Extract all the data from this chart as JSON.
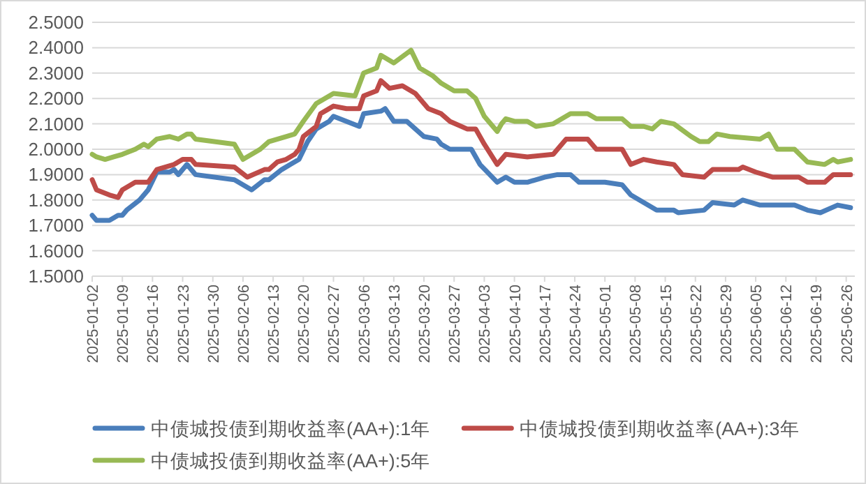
{
  "chart_data": {
    "type": "line",
    "xlim": [
      "2025-01-02",
      "2025-06-28"
    ],
    "xticks": [
      "2025-01-02",
      "2025-01-09",
      "2025-01-16",
      "2025-01-23",
      "2025-01-30",
      "2025-02-06",
      "2025-02-13",
      "2025-02-20",
      "2025-02-27",
      "2025-03-06",
      "2025-03-13",
      "2025-03-20",
      "2025-03-27",
      "2025-04-03",
      "2025-04-10",
      "2025-04-17",
      "2025-04-24",
      "2025-05-01",
      "2025-05-08",
      "2025-05-15",
      "2025-05-22",
      "2025-05-29",
      "2025-06-05",
      "2025-06-12",
      "2025-06-19",
      "2025-06-26"
    ],
    "ylim": [
      1.5,
      2.5
    ],
    "yticks": [
      {
        "value": 1.5,
        "label": "1.5000"
      },
      {
        "value": 1.6,
        "label": "1.6000"
      },
      {
        "value": 1.7,
        "label": "1.7000"
      },
      {
        "value": 1.8,
        "label": "1.8000"
      },
      {
        "value": 1.9,
        "label": "1.9000"
      },
      {
        "value": 2.0,
        "label": "2.0000"
      },
      {
        "value": 2.1,
        "label": "2.1000"
      },
      {
        "value": 2.2,
        "label": "2.2000"
      },
      {
        "value": 2.3,
        "label": "2.3000"
      },
      {
        "value": 2.4,
        "label": "2.4000"
      },
      {
        "value": 2.5,
        "label": "2.5000"
      }
    ],
    "grid": "y",
    "legend": "bottom",
    "series": [
      {
        "name": "中债城投债到期收益率(AA+):1年",
        "color": "#4a7ebb",
        "x": [
          "2025-01-02",
          "2025-01-03",
          "2025-01-06",
          "2025-01-08",
          "2025-01-09",
          "2025-01-10",
          "2025-01-13",
          "2025-01-15",
          "2025-01-17",
          "2025-01-20",
          "2025-01-21",
          "2025-01-22",
          "2025-01-24",
          "2025-01-25",
          "2025-01-26",
          "2025-02-04",
          "2025-02-08",
          "2025-02-11",
          "2025-02-12",
          "2025-02-15",
          "2025-02-17",
          "2025-02-19",
          "2025-02-21",
          "2025-02-23",
          "2025-02-26",
          "2025-02-27",
          "2025-03-05",
          "2025-03-06",
          "2025-03-10",
          "2025-03-11",
          "2025-03-13",
          "2025-03-16",
          "2025-03-20",
          "2025-03-23",
          "2025-03-24",
          "2025-03-26",
          "2025-03-31",
          "2025-04-02",
          "2025-04-06",
          "2025-04-08",
          "2025-04-10",
          "2025-04-13",
          "2025-04-17",
          "2025-04-20",
          "2025-04-23",
          "2025-04-25",
          "2025-05-01",
          "2025-05-05",
          "2025-05-07",
          "2025-05-09",
          "2025-05-13",
          "2025-05-17",
          "2025-05-18",
          "2025-05-24",
          "2025-05-26",
          "2025-05-31",
          "2025-06-02",
          "2025-06-06",
          "2025-06-14",
          "2025-06-17",
          "2025-06-20",
          "2025-06-24",
          "2025-06-27"
        ],
        "values": [
          1.74,
          1.72,
          1.72,
          1.74,
          1.74,
          1.76,
          1.8,
          1.84,
          1.91,
          1.91,
          1.92,
          1.9,
          1.94,
          1.92,
          1.9,
          1.88,
          1.84,
          1.88,
          1.88,
          1.92,
          1.94,
          1.96,
          2.03,
          2.08,
          2.11,
          2.13,
          2.09,
          2.14,
          2.15,
          2.16,
          2.11,
          2.11,
          2.05,
          2.04,
          2.02,
          2.0,
          2.0,
          1.94,
          1.87,
          1.89,
          1.87,
          1.87,
          1.89,
          1.9,
          1.9,
          1.87,
          1.87,
          1.86,
          1.82,
          1.8,
          1.76,
          1.76,
          1.75,
          1.76,
          1.79,
          1.78,
          1.8,
          1.78,
          1.78,
          1.76,
          1.75,
          1.78,
          1.77
        ]
      },
      {
        "name": "中债城投债到期收益率(AA+):3年",
        "color": "#be4b48",
        "x": [
          "2025-01-02",
          "2025-01-03",
          "2025-01-06",
          "2025-01-08",
          "2025-01-09",
          "2025-01-12",
          "2025-01-15",
          "2025-01-17",
          "2025-01-21",
          "2025-01-23",
          "2025-01-25",
          "2025-01-26",
          "2025-02-04",
          "2025-02-07",
          "2025-02-11",
          "2025-02-12",
          "2025-02-14",
          "2025-02-16",
          "2025-02-18",
          "2025-02-19",
          "2025-02-20",
          "2025-02-23",
          "2025-02-24",
          "2025-02-27",
          "2025-03-02",
          "2025-03-05",
          "2025-03-06",
          "2025-03-09",
          "2025-03-10",
          "2025-03-12",
          "2025-03-15",
          "2025-03-18",
          "2025-03-21",
          "2025-03-24",
          "2025-03-26",
          "2025-03-30",
          "2025-04-01",
          "2025-04-03",
          "2025-04-06",
          "2025-04-08",
          "2025-04-13",
          "2025-04-19",
          "2025-04-22",
          "2025-04-27",
          "2025-04-29",
          "2025-05-05",
          "2025-05-07",
          "2025-05-10",
          "2025-05-13",
          "2025-05-17",
          "2025-05-19",
          "2025-05-24",
          "2025-05-26",
          "2025-06-01",
          "2025-06-02",
          "2025-06-05",
          "2025-06-09",
          "2025-06-15",
          "2025-06-17",
          "2025-06-21",
          "2025-06-23",
          "2025-06-27"
        ],
        "values": [
          1.88,
          1.84,
          1.82,
          1.81,
          1.84,
          1.87,
          1.87,
          1.92,
          1.94,
          1.96,
          1.96,
          1.94,
          1.93,
          1.89,
          1.92,
          1.92,
          1.95,
          1.96,
          1.98,
          2.0,
          2.05,
          2.09,
          2.14,
          2.17,
          2.16,
          2.16,
          2.21,
          2.23,
          2.27,
          2.24,
          2.25,
          2.22,
          2.16,
          2.14,
          2.11,
          2.08,
          2.08,
          2.02,
          1.94,
          1.98,
          1.97,
          1.98,
          2.04,
          2.04,
          2.0,
          2.0,
          1.94,
          1.96,
          1.95,
          1.94,
          1.9,
          1.89,
          1.92,
          1.92,
          1.93,
          1.91,
          1.89,
          1.89,
          1.87,
          1.87,
          1.9,
          1.9
        ]
      },
      {
        "name": "中债城投债到期收益率(AA+):5年",
        "color": "#98b954",
        "x": [
          "2025-01-02",
          "2025-01-03",
          "2025-01-05",
          "2025-01-07",
          "2025-01-09",
          "2025-01-12",
          "2025-01-14",
          "2025-01-15",
          "2025-01-17",
          "2025-01-20",
          "2025-01-22",
          "2025-01-24",
          "2025-01-25",
          "2025-01-26",
          "2025-02-04",
          "2025-02-06",
          "2025-02-10",
          "2025-02-12",
          "2025-02-16",
          "2025-02-18",
          "2025-02-20",
          "2025-02-23",
          "2025-02-27",
          "2025-03-04",
          "2025-03-06",
          "2025-03-09",
          "2025-03-10",
          "2025-03-13",
          "2025-03-17",
          "2025-03-19",
          "2025-03-22",
          "2025-03-24",
          "2025-03-27",
          "2025-03-30",
          "2025-04-01",
          "2025-04-03",
          "2025-04-06",
          "2025-04-07",
          "2025-04-08",
          "2025-04-10",
          "2025-04-13",
          "2025-04-15",
          "2025-04-19",
          "2025-04-23",
          "2025-04-27",
          "2025-04-29",
          "2025-05-05",
          "2025-05-07",
          "2025-05-10",
          "2025-05-12",
          "2025-05-14",
          "2025-05-17",
          "2025-05-21",
          "2025-05-23",
          "2025-05-25",
          "2025-05-27",
          "2025-05-30",
          "2025-06-06",
          "2025-06-08",
          "2025-06-10",
          "2025-06-14",
          "2025-06-17",
          "2025-06-21",
          "2025-06-23",
          "2025-06-24",
          "2025-06-27"
        ],
        "values": [
          1.98,
          1.97,
          1.96,
          1.97,
          1.98,
          2.0,
          2.02,
          2.01,
          2.04,
          2.05,
          2.04,
          2.06,
          2.06,
          2.04,
          2.02,
          1.96,
          2.0,
          2.03,
          2.05,
          2.06,
          2.11,
          2.18,
          2.22,
          2.21,
          2.3,
          2.32,
          2.37,
          2.34,
          2.39,
          2.32,
          2.29,
          2.26,
          2.23,
          2.23,
          2.2,
          2.13,
          2.07,
          2.1,
          2.12,
          2.11,
          2.11,
          2.09,
          2.1,
          2.14,
          2.14,
          2.12,
          2.12,
          2.09,
          2.09,
          2.08,
          2.11,
          2.1,
          2.05,
          2.03,
          2.03,
          2.06,
          2.05,
          2.04,
          2.06,
          2.0,
          2.0,
          1.95,
          1.94,
          1.96,
          1.95,
          1.96
        ]
      }
    ]
  }
}
